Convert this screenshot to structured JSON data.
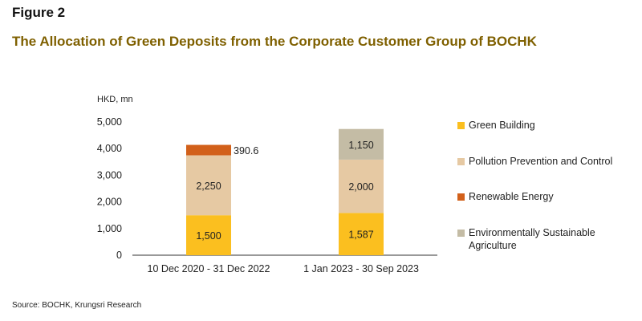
{
  "figure_label": "Figure 2",
  "source": "Source: BOCHK, Krungsri Research",
  "colors": {
    "title": "#7f6000",
    "axis": "#333333",
    "green_building": "#fbbf1f",
    "pollution": "#e6c9a3",
    "renewable": "#d2601a",
    "agriculture": "#c4bca5"
  },
  "chart_data": {
    "type": "bar",
    "stacked": true,
    "title": "The Allocation of Green Deposits from the Corporate Customer Group of BOCHK",
    "ylabel": "HKD, mn",
    "xlabel": "",
    "ylim": [
      0,
      5000
    ],
    "yticks": [
      0,
      1000,
      2000,
      3000,
      4000,
      5000
    ],
    "ytick_labels": [
      "0",
      "1,000",
      "2,000",
      "3,000",
      "4,000",
      "5,000"
    ],
    "categories": [
      "10 Dec 2020 - 31 Dec 2022",
      "1 Jan 2023 - 30 Sep 2023"
    ],
    "legend_position": "right",
    "grid": false,
    "series": [
      {
        "name": "Green Building",
        "color": "#fbbf1f",
        "values": [
          1500,
          1587
        ],
        "labels": [
          "1,500",
          "1,587"
        ]
      },
      {
        "name": "Pollution Prevention and Control",
        "color": "#e6c9a3",
        "values": [
          2250,
          2000
        ],
        "labels": [
          "2,250",
          "2,000"
        ]
      },
      {
        "name": "Renewable Energy",
        "color": "#d2601a",
        "values": [
          390.6,
          0
        ],
        "labels": [
          "390.6",
          ""
        ]
      },
      {
        "name": "Environmentally Sustainable Agriculture",
        "color": "#c4bca5",
        "values": [
          0,
          1150
        ],
        "labels": [
          "",
          "1,150"
        ]
      }
    ]
  }
}
